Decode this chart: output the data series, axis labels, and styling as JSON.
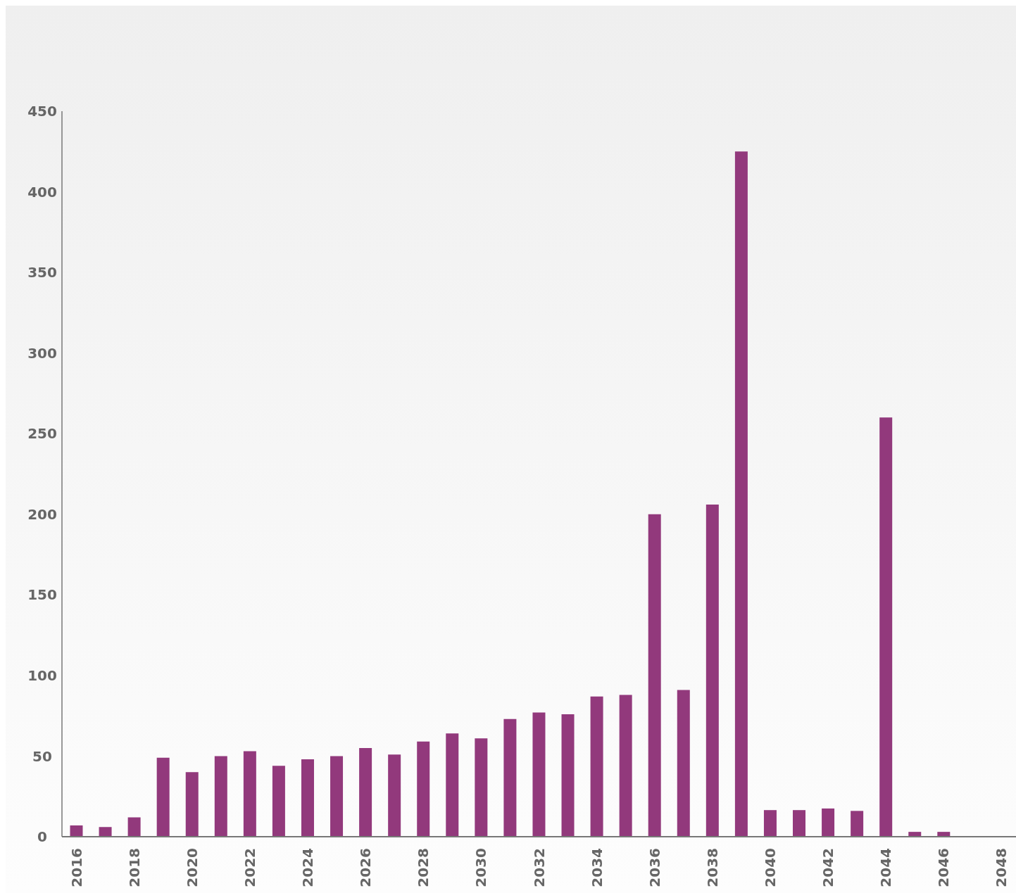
{
  "chart_data": {
    "type": "bar",
    "categories": [
      "2016",
      null,
      "2018",
      null,
      "2020",
      null,
      "2022",
      null,
      "2024",
      null,
      "2026",
      null,
      "2028",
      null,
      "2030",
      null,
      "2032",
      null,
      "2034",
      null,
      "2036",
      null,
      "2038",
      null,
      "2040",
      null,
      "2042",
      null,
      "2044",
      null,
      "2046",
      null,
      "2048"
    ],
    "values": [
      7,
      6,
      12,
      49,
      40,
      50,
      53,
      44,
      48,
      50,
      55,
      51,
      59,
      64,
      61,
      73,
      77,
      76,
      87,
      88,
      200,
      91,
      206,
      425,
      16.5,
      16.5,
      17.5,
      16,
      260,
      3,
      3,
      0,
      0
    ],
    "color": "#92397c",
    "ylim": [
      0,
      450
    ],
    "yticks": [
      0,
      50,
      100,
      150,
      200,
      250,
      300,
      350,
      400,
      450
    ],
    "grid": false,
    "legend": false
  }
}
